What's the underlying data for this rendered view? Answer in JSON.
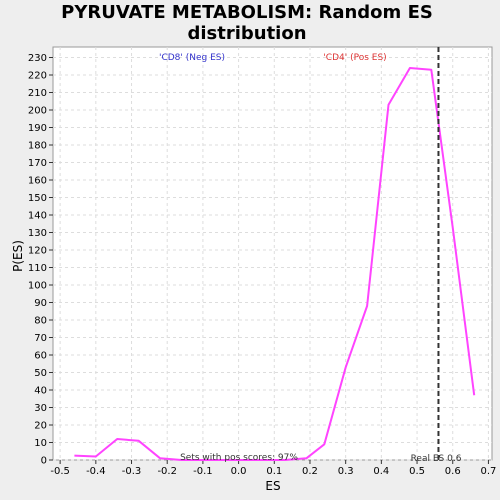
{
  "chart_data": {
    "type": "line",
    "title": "PYRUVATE METABOLISM: Random ES distribution",
    "xlabel": "ES",
    "ylabel": "P(ES)",
    "xlim": [
      -0.52,
      0.71
    ],
    "ylim": [
      0,
      236
    ],
    "x_ticks": [
      -0.5,
      -0.4,
      -0.3,
      -0.2,
      -0.1,
      0.0,
      0.1,
      0.2,
      0.3,
      0.4,
      0.5,
      0.6,
      0.7
    ],
    "x_tick_labels": [
      "-0.5",
      "-0.4",
      "-0.3",
      "-0.2",
      "-0.1",
      "0.0",
      "0.1",
      "0.2",
      "0.3",
      "0.4",
      "0.5",
      "0.6",
      "0.7"
    ],
    "y_ticks": [
      0,
      10,
      20,
      30,
      40,
      50,
      60,
      70,
      80,
      90,
      100,
      110,
      120,
      130,
      140,
      150,
      160,
      170,
      180,
      190,
      200,
      210,
      220,
      230
    ],
    "grid": true,
    "series": [
      {
        "color": "#ff44ff",
        "x": [
          -0.46,
          -0.4,
          -0.34,
          -0.28,
          -0.22,
          -0.16,
          -0.1,
          -0.04,
          0.02,
          0.08,
          0.13,
          0.19,
          0.24,
          0.3,
          0.36,
          0.42,
          0.48,
          0.54,
          0.6,
          0.66
        ],
        "y": [
          2.5,
          2,
          12,
          11,
          1,
          0,
          0,
          0,
          0,
          0,
          0,
          1,
          9,
          53,
          88,
          203,
          224,
          223,
          133,
          37
        ]
      }
    ],
    "reference_line": {
      "x": 0.56,
      "label": "Real ES 0.6",
      "color": "#333333"
    },
    "annotations": {
      "neg_label": "'CD8' (Neg ES)",
      "pos_label": "'CD4' (Pos ES)",
      "pos_scores": "Sets with pos scores: 97%"
    },
    "colors": {
      "neg": "#3333cc",
      "pos": "#dd3333",
      "background": "#eeeeee",
      "plot_bg": "#ffffff"
    }
  }
}
